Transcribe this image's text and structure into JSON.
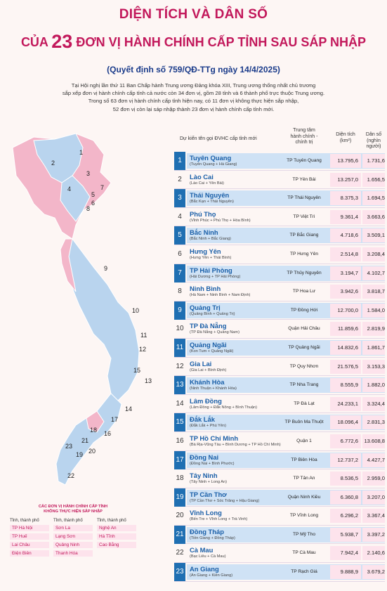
{
  "header": {
    "title_line1": "DIỆN TÍCH VÀ DÂN SỐ",
    "title_line2_prefix": "CỦA ",
    "title_line2_number": "23",
    "title_line2_suffix": " ĐƠN VỊ HÀNH CHÍNH CẤP TỈNH SAU SÁP NHẬP",
    "decision": "(Quyết định số 759/QĐ-TTg ngày 14/4/2025)",
    "intro_1": "Tại Hội nghị lần thứ 11 Ban Chấp hành Trung ương Đảng khóa XIII, Trung ương thống nhất chủ trương",
    "intro_2": "sắp xếp đơn vị hành chính cấp tỉnh cả nước còn 34 đơn vị, gồm 28 tỉnh và 6 thành phố trực thuộc Trung ương.",
    "intro_3": "Trong số 63 đơn vị hành chính cấp tỉnh hiện nay, có 11 đơn vị không thực hiện sắp nhập,",
    "intro_4": "52 đơn vị còn lại sáp nhập thành 23 đơn vị hành chính cấp tỉnh mới."
  },
  "table": {
    "col_name": "Dự kiến tên gọi ĐVHC cấp tỉnh mới",
    "col_center_1": "Trung tâm",
    "col_center_2": "hành chính -",
    "col_center_3": "chính trị",
    "col_area_1": "Diện tích",
    "col_area_2": "(km²)",
    "col_pop_1": "Dân số",
    "col_pop_2": "(nghìn người)",
    "rows": [
      {
        "num": "1",
        "name": "Tuyên Quang",
        "merge": "(Tuyên Quang + Hà Giang)",
        "center": "TP Tuyên Quang",
        "area": "13.795,6",
        "pop": "1.731,6"
      },
      {
        "num": "2",
        "name": "Lào Cai",
        "merge": "(Lào Cai + Yên Bái)",
        "center": "TP Yên Bái",
        "area": "13.257,0",
        "pop": "1.656,5"
      },
      {
        "num": "3",
        "name": "Thái Nguyên",
        "merge": "(Bắc Kạn + Thái Nguyên)",
        "center": "TP Thái Nguyên",
        "area": "8.375,3",
        "pop": "1.694,5"
      },
      {
        "num": "4",
        "name": "Phú Thọ",
        "merge": "(Vĩnh Phúc + Phú Thọ + Hòa Bình)",
        "center": "TP Việt Trì",
        "area": "9.361,4",
        "pop": "3.663,6"
      },
      {
        "num": "5",
        "name": "Bắc Ninh",
        "merge": "(Bắc Ninh + Bắc Giang)",
        "center": "TP Bắc Giang",
        "area": "4.718,6",
        "pop": "3.509,1"
      },
      {
        "num": "6",
        "name": "Hưng Yên",
        "merge": "(Hưng Yên + Thái Bình)",
        "center": "TP Hưng Yên",
        "area": "2.514,8",
        "pop": "3.208,4"
      },
      {
        "num": "7",
        "name": "TP Hải Phòng",
        "merge": "(Hải Dương + TP Hải Phòng)",
        "center": "TP Thủy Nguyên",
        "area": "3.194,7",
        "pop": "4.102,7"
      },
      {
        "num": "8",
        "name": "Ninh Bình",
        "merge": "(Hà Nam + Ninh Bình + Nam Định)",
        "center": "TP Hoa Lư",
        "area": "3.942,6",
        "pop": "3.818,7"
      },
      {
        "num": "9",
        "name": "Quảng Trị",
        "merge": "(Quảng Bình + Quảng Trị)",
        "center": "TP Đồng Hới",
        "area": "12.700,0",
        "pop": "1.584,0"
      },
      {
        "num": "10",
        "name": "TP Đà Nẵng",
        "merge": "(TP Đà Nẵng + Quảng Nam)",
        "center": "Quận Hải Châu",
        "area": "11.859,6",
        "pop": "2.819,9"
      },
      {
        "num": "11",
        "name": "Quảng Ngãi",
        "merge": "(Kon Tum + Quảng Ngãi)",
        "center": "TP Quảng Ngãi",
        "area": "14.832,6",
        "pop": "1.861,7"
      },
      {
        "num": "12",
        "name": "Gia Lai",
        "merge": "(Gia Lai + Bình Định)",
        "center": "TP Quy Nhơn",
        "area": "21.576,5",
        "pop": "3.153,3"
      },
      {
        "num": "13",
        "name": "Khánh Hòa",
        "merge": "(Ninh Thuận + Khánh Hòa)",
        "center": "TP Nha Trang",
        "area": "8.555,9",
        "pop": "1.882,0"
      },
      {
        "num": "14",
        "name": "Lâm Đồng",
        "merge": "(Lâm Đồng + Đắk Nông + Bình Thuận)",
        "center": "TP Đà Lạt",
        "area": "24.233,1",
        "pop": "3.324,4"
      },
      {
        "num": "15",
        "name": "Đắk Lắk",
        "merge": "(Đắk Lắk + Phú Yên)",
        "center": "TP Buôn Ma Thuột",
        "area": "18.096,4",
        "pop": "2.831,3"
      },
      {
        "num": "16",
        "name": "TP Hồ Chí Minh",
        "merge": "(Bà Rịa-Vũng Tàu + Bình Dương + TP Hồ Chí Minh)",
        "center": "Quận 1",
        "area": "6.772,6",
        "pop": "13.608,8"
      },
      {
        "num": "17",
        "name": "Đồng Nai",
        "merge": "(Đồng Nai + Bình Phước)",
        "center": "TP Biên Hòa",
        "area": "12.737,2",
        "pop": "4.427,7"
      },
      {
        "num": "18",
        "name": "Tây Ninh",
        "merge": "(Tây Ninh + Long An)",
        "center": "TP Tân An",
        "area": "8.536,5",
        "pop": "2.959,0"
      },
      {
        "num": "19",
        "name": "TP Cần Thơ",
        "merge": "(TP Cần Thơ + Sóc Trăng + Hậu Giang)",
        "center": "Quận Ninh Kiều",
        "area": "6.360,8",
        "pop": "3.207,0"
      },
      {
        "num": "20",
        "name": "Vĩnh Long",
        "merge": "(Bến Tre + Vĩnh Long + Trà Vinh)",
        "center": "TP Vĩnh Long",
        "area": "6.296,2",
        "pop": "3.367,4"
      },
      {
        "num": "21",
        "name": "Đồng Tháp",
        "merge": "(Tiền Giang + Đồng Tháp)",
        "center": "TP Mỹ Tho",
        "area": "5.938,7",
        "pop": "3.397,2"
      },
      {
        "num": "22",
        "name": "Cà Mau",
        "merge": "(Bạc Liêu + Cà Mau)",
        "center": "TP Cà Mau",
        "area": "7.942,4",
        "pop": "2.140,6"
      },
      {
        "num": "23",
        "name": "An Giang",
        "merge": "(An Giang + Kiên Giang)",
        "center": "TP Rạch Giá",
        "area": "9.888,9",
        "pop": "3.679,2"
      }
    ]
  },
  "legend": {
    "title_1": "CÁC ĐƠN VỊ HÀNH CHÍNH CẤP TỈNH",
    "title_2": "KHÔNG THỰC HIỆN SẮP NHẬP",
    "head": "Tỉnh, thành phố",
    "items": [
      "TP Hà Nội",
      "Sơn La",
      "Nghệ An",
      "TP Huế",
      "Lạng Sơn",
      "Hà Tĩnh",
      "Lai Châu",
      "Quảng Ninh",
      "Cao Bằng",
      "Điện Biên",
      "Thanh Hóa"
    ]
  },
  "map_labels": [
    "1",
    "2",
    "3",
    "4",
    "5",
    "6",
    "7",
    "8",
    "9",
    "10",
    "11",
    "12",
    "13",
    "14",
    "15",
    "16",
    "17",
    "18",
    "19",
    "20",
    "21",
    "22",
    "23"
  ],
  "colors": {
    "accent": "#c2185b",
    "blue": "#1f6fb2",
    "map_blue": "#b9d4ee",
    "map_pink": "#f3b6c9"
  }
}
